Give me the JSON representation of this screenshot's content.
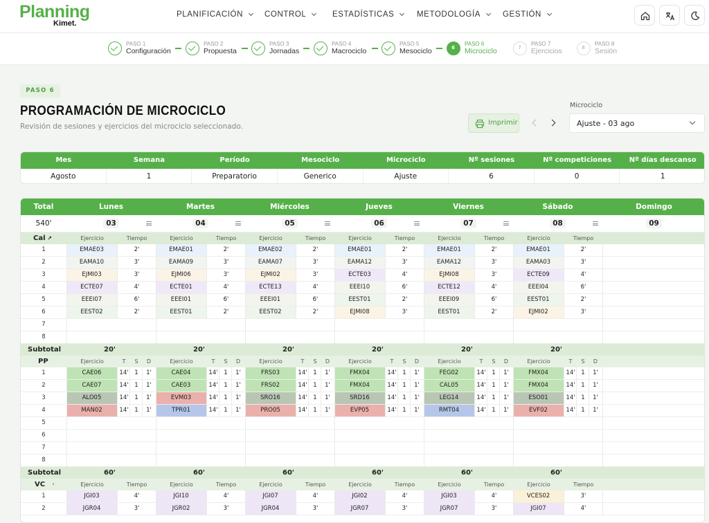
{
  "header": {
    "logo_main": "Planning",
    "logo_sub": "Kimet.",
    "nav": [
      "PLANIFICACIÓN",
      "CONTROL",
      "ESTADÍSTICAS",
      "METODOLOGÍA",
      "GESTIÓN"
    ],
    "icons": [
      "home-icon",
      "translate-icon",
      "dark-mode-icon"
    ]
  },
  "steps": [
    {
      "num": "PASO 1",
      "label": "Configuración",
      "state": "done"
    },
    {
      "num": "PASO 2",
      "label": "Propuesta",
      "state": "done"
    },
    {
      "num": "PASO 3",
      "label": "Jornadas",
      "state": "done"
    },
    {
      "num": "PASO 4",
      "label": "Macrociclo",
      "state": "done"
    },
    {
      "num": "PASO 5",
      "label": "Mesociclo",
      "state": "done"
    },
    {
      "num": "PASO 6",
      "label": "Microciclo",
      "state": "current",
      "badge": "6"
    },
    {
      "num": "PASO 7",
      "label": "Ejercicios",
      "state": "future",
      "badge": "7"
    },
    {
      "num": "PASO 8",
      "label": "Sesión",
      "state": "future",
      "badge": "8"
    }
  ],
  "page": {
    "badge": "PASO 6",
    "title": "PROGRAMACIÓN DE MICROCICLO",
    "subtitle": "Revisión de sesiones y ejercicios del microciclo seleccionado.",
    "print_label": "Imprimir",
    "micro_label": "Microciclo",
    "micro_value": "Ajuste - 03 ago"
  },
  "summary": {
    "headers": [
      "Mes",
      "Semana",
      "Período",
      "Mesociclo",
      "Microciclo",
      "Nº sesiones",
      "Nº competiciones",
      "Nº días descanso"
    ],
    "values": [
      "Agosto",
      "1",
      "Preparatorio",
      "Generico",
      "Ajuste",
      "6",
      "0",
      "1"
    ]
  },
  "grid": {
    "total_label": "Total",
    "total_value": "540'",
    "days": [
      {
        "name": "Lunes",
        "date": "03"
      },
      {
        "name": "Martes",
        "date": "04"
      },
      {
        "name": "Miércoles",
        "date": "05"
      },
      {
        "name": "Jueves",
        "date": "06"
      },
      {
        "name": "Viernes",
        "date": "07"
      },
      {
        "name": "Sábado",
        "date": "08"
      },
      {
        "name": "Domingo",
        "date": "09"
      }
    ],
    "subtotal_label": "Subtotal",
    "col_ejercicio": "Ejercicio",
    "col_tiempo": "Tiempo",
    "col_t": "T",
    "col_s": "S",
    "col_d": "D",
    "cal": {
      "label": "Cal",
      "subtotal": "20'",
      "rows": [
        "1",
        "2",
        "3",
        "4",
        "5",
        "6",
        "7",
        "8"
      ],
      "cells": [
        [
          [
            "EMAE03",
            "2'"
          ],
          [
            "EAMA10",
            "3'"
          ],
          [
            "EJMI03",
            "3'"
          ],
          [
            "ECTE07",
            "4'"
          ],
          [
            "EEEI07",
            "6'"
          ],
          [
            "EEST02",
            "2'"
          ]
        ],
        [
          [
            "EMAE01",
            "2'"
          ],
          [
            "EAMA09",
            "3'"
          ],
          [
            "EJMI06",
            "3'"
          ],
          [
            "ECTE01",
            "4'"
          ],
          [
            "EEEI01",
            "6'"
          ],
          [
            "EEST01",
            "2'"
          ]
        ],
        [
          [
            "EMAE02",
            "2'"
          ],
          [
            "EAMA07",
            "3'"
          ],
          [
            "EJMI02",
            "3'"
          ],
          [
            "ECTE13",
            "4'"
          ],
          [
            "EEEI01",
            "6'"
          ],
          [
            "EEST02",
            "2'"
          ]
        ],
        [
          [
            "EMAE01",
            "2'"
          ],
          [
            "EAMA12",
            "3'"
          ],
          [
            "ECTE03",
            "4'"
          ],
          [
            "EEEI10",
            "6'"
          ],
          [
            "EEST01",
            "2'"
          ],
          [
            "EJMI08",
            "3'"
          ]
        ],
        [
          [
            "EMAE01",
            "2'"
          ],
          [
            "EAMA12",
            "3'"
          ],
          [
            "EJMI08",
            "3'"
          ],
          [
            "ECTE12",
            "4'"
          ],
          [
            "EEEI09",
            "6'"
          ],
          [
            "EEST01",
            "2'"
          ]
        ],
        [
          [
            "EMAE01",
            "2'"
          ],
          [
            "EAMA03",
            "3'"
          ],
          [
            "ECTE09",
            "4'"
          ],
          [
            "EEEI04",
            "6'"
          ],
          [
            "EEST01",
            "2'"
          ],
          [
            "EJMI02",
            "3'"
          ]
        ]
      ]
    },
    "pp": {
      "label": "PP",
      "subtotal": "20'",
      "rows": [
        "1",
        "2",
        "3",
        "4",
        "5",
        "6",
        "7",
        "8"
      ],
      "tsd": [
        "14'",
        "1",
        "1'"
      ],
      "cells": [
        [
          "CAE06",
          "CAE07",
          "ALO05",
          "MAN02"
        ],
        [
          "CAE04",
          "CAE03",
          "EVM03",
          "TPR01"
        ],
        [
          "FRS03",
          "FRS02",
          "SRO16",
          "PRO05"
        ],
        [
          "FMX04",
          "FMX04",
          "SRD16",
          "EVP05"
        ],
        [
          "FEG02",
          "CAL05",
          "LEG14",
          "RMT04"
        ],
        [
          "FMX04",
          "FMX04",
          "ESO01",
          "EVF02"
        ]
      ]
    },
    "vc": {
      "label": "VC",
      "subtotal": "60'",
      "rows": [
        "1",
        "2"
      ],
      "cells": [
        [
          [
            "JGI03",
            "4'"
          ],
          [
            "JGR04",
            "3'"
          ]
        ],
        [
          [
            "JGI10",
            "4'"
          ],
          [
            "JGR02",
            "3'"
          ]
        ],
        [
          [
            "JGI07",
            "4'"
          ],
          [
            "JGR04",
            "3'"
          ]
        ],
        [
          [
            "JGI02",
            "4'"
          ],
          [
            "JGR07",
            "3'"
          ]
        ],
        [
          [
            "JGI03",
            "4'"
          ],
          [
            "JGR07",
            "3'"
          ]
        ],
        [
          [
            "VCES02",
            "3'"
          ],
          [
            "JGI07",
            "4'"
          ]
        ]
      ]
    },
    "colors": {
      "green": "#56b04a",
      "light_green": "#e7f1e3",
      "band_green": "#dcebd6"
    }
  }
}
